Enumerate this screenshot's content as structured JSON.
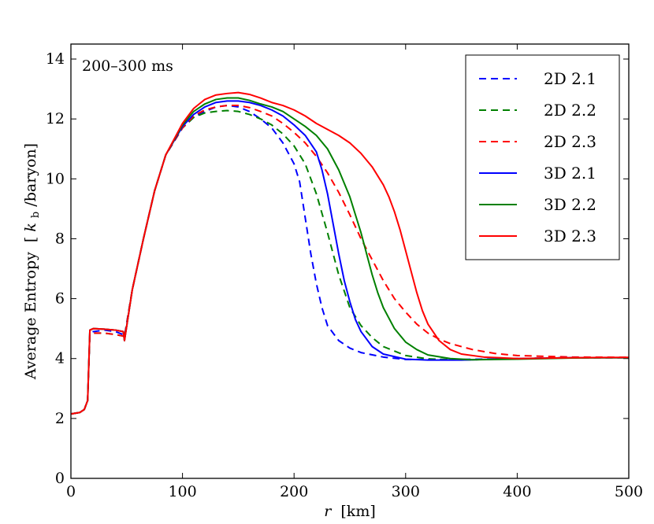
{
  "chart_data": {
    "type": "line",
    "annotation": "200–300 ms",
    "xlabel_var": "r",
    "xlabel_unit": "[km]",
    "ylabel_text": "Average Entropy",
    "ylabel_unit_open": "[",
    "ylabel_k": "k",
    "ylabel_sub": "b",
    "ylabel_unit_close": "/baryon]",
    "xlim": [
      0,
      500
    ],
    "ylim": [
      0,
      14.5
    ],
    "xticks": [
      0,
      100,
      200,
      300,
      400,
      500
    ],
    "xtick_labels": [
      "0",
      "100",
      "200",
      "300",
      "400",
      "500"
    ],
    "yticks": [
      0,
      2,
      4,
      6,
      8,
      10,
      12,
      14
    ],
    "ytick_labels": [
      "0",
      "2",
      "4",
      "6",
      "8",
      "10",
      "12",
      "14"
    ],
    "legend_position": "top-right",
    "series": [
      {
        "name": "2D 2.1",
        "color": "#0000ff",
        "dash": true,
        "x": [
          0,
          8,
          12,
          15,
          17,
          20,
          30,
          40,
          47,
          48,
          55,
          65,
          75,
          85,
          100,
          110,
          120,
          130,
          140,
          150,
          160,
          170,
          180,
          190,
          200,
          205,
          210,
          215,
          220,
          225,
          230,
          240,
          250,
          260,
          280,
          300,
          350,
          400,
          450,
          500
        ],
        "y": [
          2.15,
          2.2,
          2.3,
          2.6,
          4.85,
          4.9,
          4.95,
          4.9,
          4.8,
          4.75,
          6.3,
          8.0,
          9.6,
          10.8,
          11.7,
          12.05,
          12.25,
          12.4,
          12.45,
          12.4,
          12.25,
          12.0,
          11.7,
          11.2,
          10.5,
          9.9,
          8.7,
          7.5,
          6.5,
          5.7,
          5.1,
          4.6,
          4.35,
          4.2,
          4.05,
          3.97,
          3.97,
          4.0,
          4.03,
          4.03
        ]
      },
      {
        "name": "2D 2.2",
        "color": "#008000",
        "dash": true,
        "x": [
          0,
          8,
          12,
          15,
          17,
          20,
          30,
          40,
          47,
          48,
          55,
          65,
          75,
          85,
          100,
          110,
          120,
          130,
          140,
          150,
          160,
          170,
          180,
          190,
          200,
          210,
          220,
          230,
          240,
          250,
          260,
          270,
          280,
          300,
          320,
          350,
          400,
          450,
          500
        ],
        "y": [
          2.15,
          2.2,
          2.3,
          2.6,
          4.8,
          4.85,
          4.85,
          4.8,
          4.75,
          4.7,
          6.3,
          8.0,
          9.6,
          10.8,
          11.7,
          12.05,
          12.2,
          12.25,
          12.28,
          12.25,
          12.15,
          12.0,
          11.8,
          11.5,
          11.1,
          10.5,
          9.5,
          8.2,
          6.8,
          5.7,
          5.1,
          4.7,
          4.4,
          4.1,
          3.99,
          3.95,
          4.0,
          4.03,
          4.03
        ]
      },
      {
        "name": "2D 2.3",
        "color": "#ff0000",
        "dash": true,
        "x": [
          0,
          8,
          12,
          15,
          17,
          20,
          30,
          40,
          47,
          48,
          55,
          65,
          75,
          85,
          100,
          110,
          120,
          130,
          140,
          150,
          160,
          170,
          180,
          190,
          200,
          210,
          220,
          230,
          240,
          250,
          260,
          270,
          280,
          290,
          300,
          310,
          320,
          330,
          340,
          360,
          380,
          400,
          450,
          500
        ],
        "y": [
          2.15,
          2.2,
          2.3,
          2.6,
          4.8,
          4.85,
          4.85,
          4.8,
          4.75,
          4.7,
          6.3,
          8.0,
          9.6,
          10.8,
          11.7,
          12.1,
          12.3,
          12.4,
          12.45,
          12.45,
          12.38,
          12.25,
          12.1,
          11.85,
          11.55,
          11.2,
          10.75,
          10.2,
          9.55,
          8.8,
          8.0,
          7.3,
          6.6,
          6.0,
          5.55,
          5.15,
          4.85,
          4.65,
          4.5,
          4.3,
          4.17,
          4.1,
          4.05,
          4.04
        ]
      },
      {
        "name": "3D 2.1",
        "color": "#0000ff",
        "dash": false,
        "x": [
          0,
          8,
          12,
          15,
          17,
          20,
          30,
          40,
          47,
          48,
          55,
          65,
          75,
          85,
          100,
          110,
          120,
          130,
          140,
          150,
          160,
          170,
          180,
          190,
          200,
          210,
          220,
          225,
          230,
          235,
          240,
          245,
          250,
          255,
          260,
          270,
          280,
          300,
          320,
          350,
          400,
          450,
          500
        ],
        "y": [
          2.15,
          2.2,
          2.3,
          2.6,
          4.95,
          5.0,
          4.98,
          4.95,
          4.9,
          4.6,
          6.3,
          8.0,
          9.6,
          10.8,
          11.75,
          12.15,
          12.4,
          12.55,
          12.6,
          12.6,
          12.55,
          12.45,
          12.3,
          12.1,
          11.8,
          11.45,
          10.9,
          10.3,
          9.5,
          8.5,
          7.5,
          6.6,
          5.9,
          5.3,
          4.9,
          4.4,
          4.15,
          3.98,
          3.95,
          3.95,
          4.0,
          4.03,
          4.03
        ]
      },
      {
        "name": "3D 2.2",
        "color": "#008000",
        "dash": false,
        "x": [
          0,
          8,
          12,
          15,
          17,
          20,
          30,
          40,
          47,
          48,
          55,
          65,
          75,
          85,
          100,
          110,
          120,
          130,
          140,
          150,
          160,
          170,
          180,
          190,
          200,
          210,
          220,
          230,
          240,
          250,
          255,
          260,
          265,
          270,
          275,
          280,
          290,
          300,
          310,
          320,
          340,
          360,
          400,
          450,
          500
        ],
        "y": [
          2.15,
          2.2,
          2.3,
          2.6,
          4.95,
          5.0,
          4.98,
          4.95,
          4.9,
          4.6,
          6.3,
          8.0,
          9.6,
          10.8,
          11.8,
          12.25,
          12.5,
          12.65,
          12.7,
          12.7,
          12.62,
          12.5,
          12.4,
          12.25,
          12.0,
          11.75,
          11.45,
          11.0,
          10.3,
          9.4,
          8.8,
          8.2,
          7.5,
          6.8,
          6.2,
          5.7,
          5.0,
          4.55,
          4.3,
          4.12,
          4.0,
          3.96,
          3.98,
          4.02,
          4.03
        ]
      },
      {
        "name": "3D 2.3",
        "color": "#ff0000",
        "dash": false,
        "x": [
          0,
          8,
          12,
          15,
          17,
          20,
          30,
          40,
          47,
          48,
          55,
          65,
          75,
          85,
          100,
          110,
          120,
          130,
          140,
          150,
          160,
          170,
          180,
          190,
          200,
          210,
          220,
          230,
          240,
          250,
          260,
          270,
          280,
          285,
          290,
          295,
          300,
          305,
          310,
          315,
          320,
          330,
          340,
          350,
          370,
          400,
          450,
          500
        ],
        "y": [
          2.15,
          2.2,
          2.3,
          2.6,
          4.95,
          5.0,
          4.98,
          4.95,
          4.9,
          4.6,
          6.3,
          8.0,
          9.6,
          10.8,
          11.85,
          12.35,
          12.65,
          12.8,
          12.85,
          12.88,
          12.82,
          12.7,
          12.55,
          12.45,
          12.3,
          12.1,
          11.85,
          11.65,
          11.45,
          11.2,
          10.85,
          10.4,
          9.8,
          9.4,
          8.9,
          8.3,
          7.6,
          6.9,
          6.2,
          5.6,
          5.15,
          4.6,
          4.3,
          4.15,
          4.05,
          4.0,
          4.03,
          4.04
        ]
      }
    ]
  }
}
